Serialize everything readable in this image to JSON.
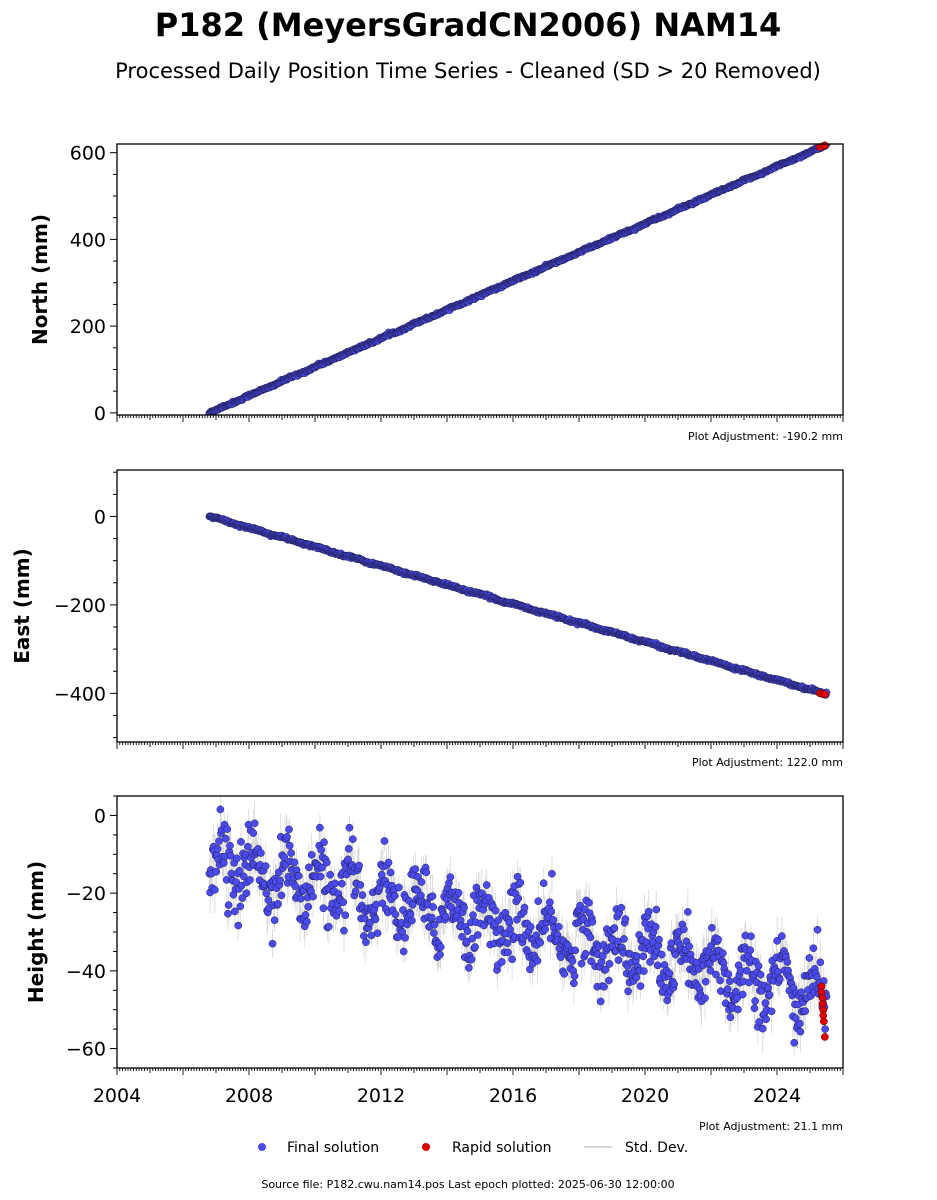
{
  "header": {
    "title": "P182 (MeyersGradCN2006) NAM14",
    "subtitle": "Processed Daily Position Time Series - Cleaned (SD > 20 Removed)"
  },
  "colors": {
    "final": "#4a4aef",
    "rapid": "#e00000",
    "stddev": "#b8b8b8",
    "marker_edge": "#1a1a3a"
  },
  "legend": {
    "final_label": "Final solution",
    "rapid_label": "Rapid solution",
    "stddev_label": "Std. Dev."
  },
  "footer": {
    "source": "Source file: P182.cwu.nam14.pos  Last epoch plotted: 2025-06-30 12:00:00"
  },
  "chart_data": [
    {
      "type": "scatter",
      "name": "north",
      "ylabel": "North (mm)",
      "xlim": [
        2004,
        2026
      ],
      "ylim": [
        -5,
        620
      ],
      "yticks": [
        0,
        200,
        400,
        600
      ],
      "adjustment": "Plot Adjustment: -190.2 mm",
      "trend": {
        "start_year": 2006.8,
        "end_year": 2025.5,
        "start": 0,
        "end": 618,
        "noise": 1.4,
        "seasonal": 0.8,
        "errbar": 1.2
      },
      "rapid_points": [
        {
          "x": 2025.3,
          "y": 613
        },
        {
          "x": 2025.4,
          "y": 615
        },
        {
          "x": 2025.45,
          "y": 617
        }
      ],
      "show_xtick_labels": false
    },
    {
      "type": "scatter",
      "name": "east",
      "ylabel": "East (mm)",
      "xlim": [
        2004,
        2026
      ],
      "ylim": [
        -510,
        105
      ],
      "yticks": [
        0,
        -200,
        -400
      ],
      "adjustment": "Plot Adjustment: 122.0 mm",
      "trend": {
        "start_year": 2006.8,
        "end_year": 2025.5,
        "start": 0,
        "end": -402,
        "noise": 1.4,
        "seasonal": 1.0,
        "errbar": 1.2
      },
      "rapid_points": [
        {
          "x": 2025.3,
          "y": -400
        },
        {
          "x": 2025.4,
          "y": -401
        },
        {
          "x": 2025.45,
          "y": -402
        }
      ],
      "show_xtick_labels": false
    },
    {
      "type": "scatter",
      "name": "height",
      "ylabel": "Height (mm)",
      "xlim": [
        2004,
        2026
      ],
      "ylim": [
        -65,
        5
      ],
      "yticks": [
        0,
        -20,
        -40,
        -60
      ],
      "adjustment": "Plot Adjustment: 21.1 mm",
      "trend": {
        "start_year": 2006.8,
        "end_year": 2025.5,
        "start": -12,
        "end": -46,
        "noise": 4.2,
        "seasonal": 5.5,
        "errbar": 4.0
      },
      "rapid_points": [
        {
          "x": 2025.35,
          "y": -44
        },
        {
          "x": 2025.35,
          "y": -45.5
        },
        {
          "x": 2025.38,
          "y": -47
        },
        {
          "x": 2025.38,
          "y": -48.5
        },
        {
          "x": 2025.4,
          "y": -50
        },
        {
          "x": 2025.4,
          "y": -51.5
        },
        {
          "x": 2025.42,
          "y": -53
        },
        {
          "x": 2025.45,
          "y": -57
        }
      ],
      "xticks": [
        2004,
        2008,
        2012,
        2016,
        2020,
        2024
      ],
      "xtick_labels": [
        "2004",
        "2008",
        "2012",
        "2016",
        "2020",
        "2024"
      ],
      "show_xtick_labels": true
    }
  ]
}
